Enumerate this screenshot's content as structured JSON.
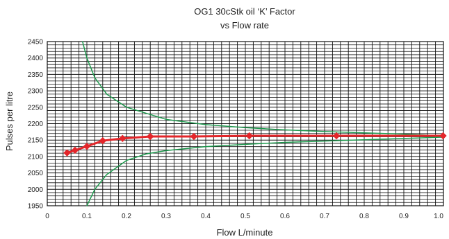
{
  "chart_data": {
    "type": "line",
    "title": [
      "OG1 30cStk oil ‘K’ Factor",
      "vs Flow rate"
    ],
    "xlabel": "Flow L/minute",
    "ylabel": "Pulses per litre",
    "xlim": [
      0,
      1.0
    ],
    "ylim": [
      1950,
      2450
    ],
    "x_ticks": [
      "0",
      "0.1",
      "0.2",
      "0.3",
      "0.4",
      "0.5",
      "0.6",
      "0.7",
      "0.8",
      "0.9",
      "1.0"
    ],
    "y_ticks": [
      "1950",
      "2000",
      "2050",
      "2100",
      "2150",
      "2200",
      "2250",
      "2300",
      "2350",
      "2400",
      "2450"
    ],
    "grid": true,
    "series": [
      {
        "role": "measured",
        "color": "#e3262a",
        "marker": "diamond",
        "points": [
          [
            0.05,
            2111
          ],
          [
            0.07,
            2119
          ],
          [
            0.1,
            2131
          ],
          [
            0.14,
            2148
          ],
          [
            0.19,
            2155
          ],
          [
            0.26,
            2161
          ],
          [
            0.37,
            2161
          ],
          [
            0.51,
            2163
          ],
          [
            0.73,
            2163
          ],
          [
            0.999,
            2163
          ]
        ]
      },
      {
        "role": "upper-limit",
        "color": "#1e9a4e",
        "points": [
          [
            0.089,
            2450
          ],
          [
            0.1,
            2400
          ],
          [
            0.12,
            2340
          ],
          [
            0.15,
            2290
          ],
          [
            0.2,
            2250
          ],
          [
            0.3,
            2213
          ],
          [
            0.4,
            2197
          ],
          [
            0.5,
            2188
          ],
          [
            0.6,
            2181
          ],
          [
            0.7,
            2176
          ],
          [
            0.8,
            2172
          ],
          [
            0.9,
            2168
          ],
          [
            0.999,
            2163
          ]
        ]
      },
      {
        "role": "lower-limit",
        "color": "#1e9a4e",
        "points": [
          [
            0.1,
            1950
          ],
          [
            0.12,
            2000
          ],
          [
            0.15,
            2045
          ],
          [
            0.2,
            2088
          ],
          [
            0.25,
            2108
          ],
          [
            0.3,
            2118
          ],
          [
            0.4,
            2130
          ],
          [
            0.5,
            2137
          ],
          [
            0.6,
            2143
          ],
          [
            0.7,
            2147
          ],
          [
            0.8,
            2151
          ],
          [
            0.9,
            2155
          ],
          [
            0.999,
            2159
          ]
        ]
      }
    ]
  }
}
